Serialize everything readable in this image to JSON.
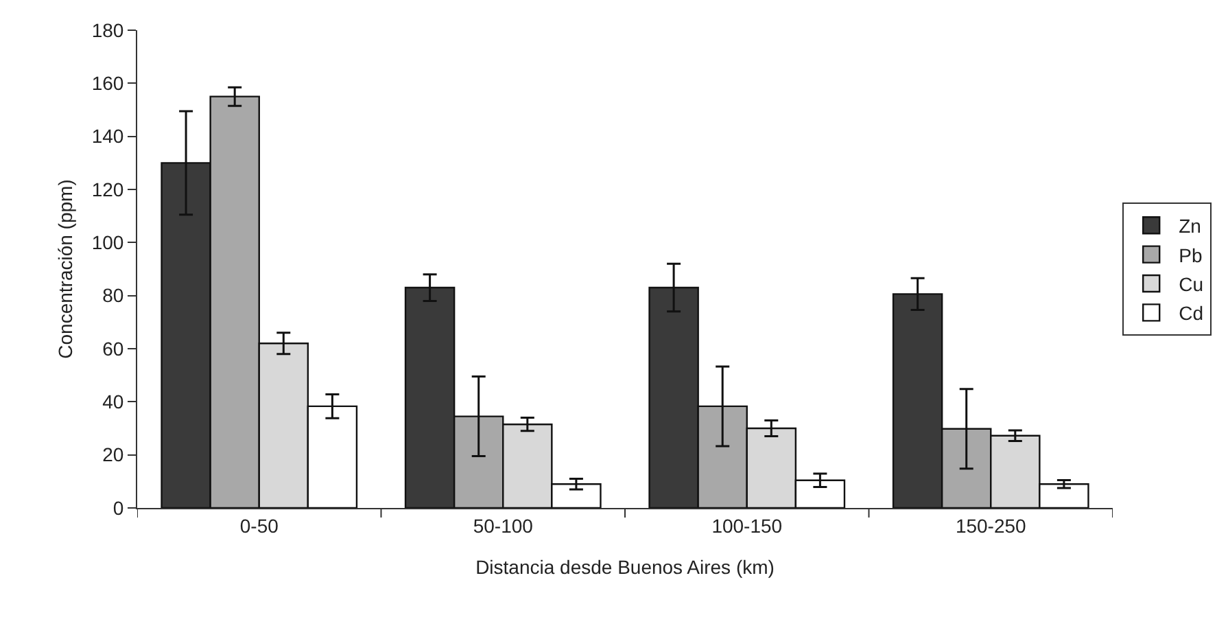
{
  "chart_data": {
    "type": "bar",
    "xlabel": "Distancia desde Buenos Aires (km)",
    "ylabel": "Concentración (ppm)",
    "categories": [
      "0-50",
      "50-100",
      "100-150",
      "150-250"
    ],
    "series": [
      {
        "name": "Zn",
        "color": "#3a3a3a",
        "values": [
          130,
          83,
          83,
          80.6
        ],
        "errors": [
          19.5,
          5,
          9,
          6
        ]
      },
      {
        "name": "Pb",
        "color": "#a8a8a8",
        "values": [
          155,
          34.5,
          38.3,
          29.8
        ],
        "errors": [
          3.5,
          15,
          15,
          15
        ]
      },
      {
        "name": "Cu",
        "color": "#d8d8d8",
        "values": [
          62,
          31.5,
          30,
          27.2
        ],
        "errors": [
          4,
          2.5,
          3,
          2
        ]
      },
      {
        "name": "Cd",
        "color": "#ffffff",
        "values": [
          38.3,
          9,
          10.4,
          9
        ],
        "errors": [
          4.5,
          2,
          2.5,
          1.5
        ]
      }
    ],
    "ylim": [
      0,
      180
    ],
    "yticks": [
      0,
      20,
      40,
      60,
      80,
      100,
      120,
      140,
      160,
      180
    ],
    "grid": false,
    "legend": "right"
  }
}
